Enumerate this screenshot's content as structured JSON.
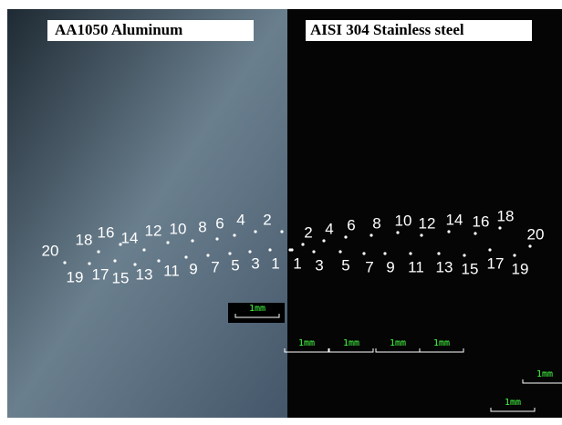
{
  "titles": {
    "left": "AA1050  Aluminum",
    "right": "AISI 304   Stainless steel"
  },
  "left_points": [
    20,
    18,
    16,
    14,
    12,
    10,
    8,
    6,
    4,
    2,
    19,
    17,
    15,
    13,
    11,
    9,
    7,
    5,
    3,
    1
  ],
  "right_points": [
    1,
    2,
    3,
    4,
    5,
    6,
    7,
    8,
    9,
    10,
    11,
    12,
    13,
    14,
    15,
    16,
    17,
    18,
    19,
    20
  ],
  "scale_bars": [
    "1mm",
    "1mm",
    "1mm",
    "1mm",
    "1mm",
    "1mm",
    "1mm"
  ]
}
